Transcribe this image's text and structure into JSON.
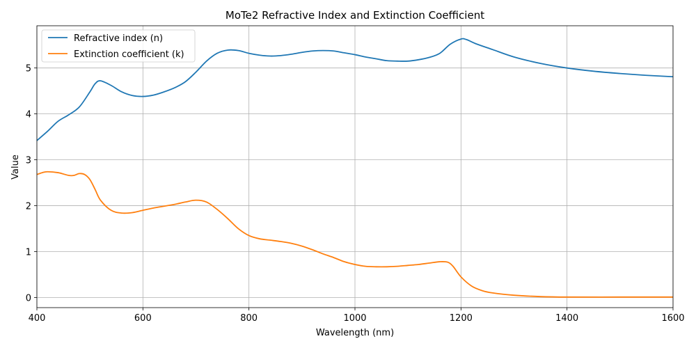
{
  "chart_data": {
    "type": "line",
    "title": "MoTe2 Refractive Index and Extinction Coefficient",
    "xlabel": "Wavelength (nm)",
    "ylabel": "Value",
    "xlim": [
      400,
      1600
    ],
    "ylim": [
      -0.22,
      5.92
    ],
    "xticks": [
      400,
      600,
      800,
      1000,
      1200,
      1400,
      1600
    ],
    "yticks": [
      0,
      1,
      2,
      3,
      4,
      5
    ],
    "grid": true,
    "legend_position": "upper-left",
    "series": [
      {
        "name": "Refractive index (n)",
        "color": "#1f77b4",
        "points": [
          [
            400,
            3.42
          ],
          [
            420,
            3.62
          ],
          [
            440,
            3.84
          ],
          [
            460,
            3.98
          ],
          [
            480,
            4.15
          ],
          [
            500,
            4.48
          ],
          [
            510,
            4.66
          ],
          [
            520,
            4.72
          ],
          [
            540,
            4.62
          ],
          [
            560,
            4.48
          ],
          [
            580,
            4.4
          ],
          [
            600,
            4.38
          ],
          [
            620,
            4.41
          ],
          [
            640,
            4.48
          ],
          [
            660,
            4.57
          ],
          [
            680,
            4.7
          ],
          [
            700,
            4.91
          ],
          [
            720,
            5.15
          ],
          [
            740,
            5.32
          ],
          [
            760,
            5.39
          ],
          [
            780,
            5.38
          ],
          [
            800,
            5.32
          ],
          [
            820,
            5.28
          ],
          [
            840,
            5.26
          ],
          [
            860,
            5.27
          ],
          [
            880,
            5.3
          ],
          [
            900,
            5.34
          ],
          [
            920,
            5.37
          ],
          [
            940,
            5.38
          ],
          [
            960,
            5.37
          ],
          [
            980,
            5.33
          ],
          [
            1000,
            5.29
          ],
          [
            1020,
            5.24
          ],
          [
            1040,
            5.2
          ],
          [
            1060,
            5.16
          ],
          [
            1080,
            5.15
          ],
          [
            1100,
            5.15
          ],
          [
            1120,
            5.18
          ],
          [
            1140,
            5.23
          ],
          [
            1160,
            5.32
          ],
          [
            1180,
            5.52
          ],
          [
            1200,
            5.63
          ],
          [
            1210,
            5.62
          ],
          [
            1230,
            5.52
          ],
          [
            1260,
            5.4
          ],
          [
            1300,
            5.24
          ],
          [
            1350,
            5.1
          ],
          [
            1400,
            5.0
          ],
          [
            1450,
            4.93
          ],
          [
            1500,
            4.88
          ],
          [
            1550,
            4.84
          ],
          [
            1600,
            4.81
          ]
        ]
      },
      {
        "name": "Extinction coefficient (k)",
        "color": "#ff7f0e",
        "points": [
          [
            400,
            2.68
          ],
          [
            410,
            2.72
          ],
          [
            420,
            2.74
          ],
          [
            440,
            2.72
          ],
          [
            460,
            2.66
          ],
          [
            470,
            2.66
          ],
          [
            480,
            2.7
          ],
          [
            490,
            2.68
          ],
          [
            500,
            2.57
          ],
          [
            510,
            2.35
          ],
          [
            520,
            2.12
          ],
          [
            540,
            1.9
          ],
          [
            560,
            1.84
          ],
          [
            580,
            1.85
          ],
          [
            600,
            1.9
          ],
          [
            620,
            1.95
          ],
          [
            640,
            1.99
          ],
          [
            660,
            2.03
          ],
          [
            680,
            2.08
          ],
          [
            700,
            2.12
          ],
          [
            720,
            2.08
          ],
          [
            740,
            1.92
          ],
          [
            760,
            1.72
          ],
          [
            780,
            1.5
          ],
          [
            800,
            1.35
          ],
          [
            820,
            1.28
          ],
          [
            840,
            1.25
          ],
          [
            860,
            1.22
          ],
          [
            880,
            1.18
          ],
          [
            900,
            1.12
          ],
          [
            920,
            1.04
          ],
          [
            940,
            0.95
          ],
          [
            960,
            0.87
          ],
          [
            980,
            0.78
          ],
          [
            1000,
            0.72
          ],
          [
            1020,
            0.68
          ],
          [
            1040,
            0.67
          ],
          [
            1060,
            0.67
          ],
          [
            1080,
            0.68
          ],
          [
            1100,
            0.7
          ],
          [
            1120,
            0.72
          ],
          [
            1140,
            0.75
          ],
          [
            1160,
            0.78
          ],
          [
            1175,
            0.77
          ],
          [
            1185,
            0.68
          ],
          [
            1200,
            0.45
          ],
          [
            1220,
            0.25
          ],
          [
            1240,
            0.15
          ],
          [
            1260,
            0.1
          ],
          [
            1300,
            0.05
          ],
          [
            1350,
            0.02
          ],
          [
            1400,
            0.01
          ],
          [
            1500,
            0.01
          ],
          [
            1600,
            0.01
          ]
        ]
      }
    ]
  }
}
